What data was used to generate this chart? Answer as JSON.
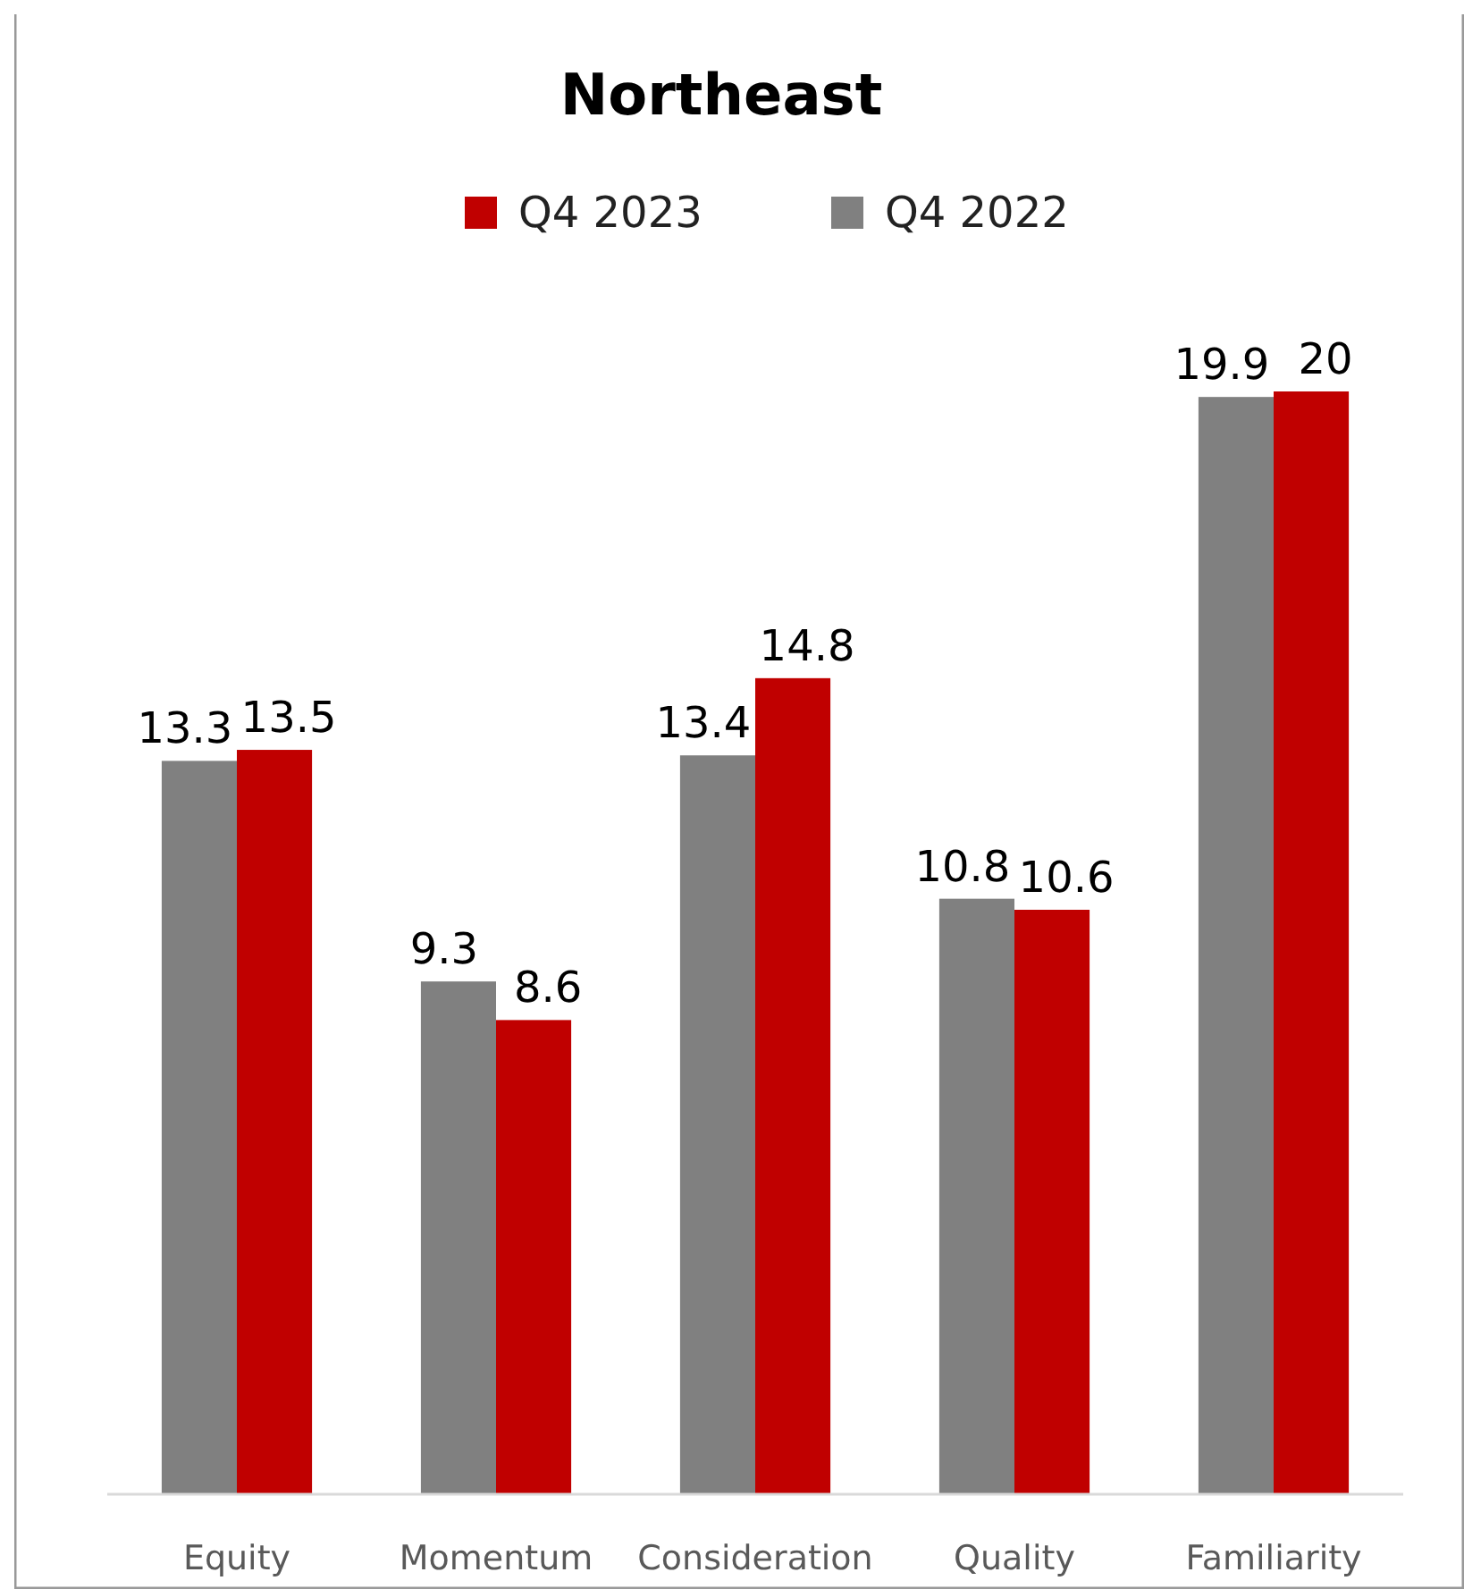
{
  "chart_data": {
    "type": "bar",
    "title": "Northeast",
    "categories": [
      "Equity",
      "Momentum",
      "Consideration",
      "Quality",
      "Familiarity"
    ],
    "series": [
      {
        "name": "Q4 2022",
        "color": "#808080",
        "values": [
          13.3,
          9.3,
          13.4,
          10.8,
          19.9
        ]
      },
      {
        "name": "Q4 2023",
        "color": "#c00000",
        "values": [
          13.5,
          8.6,
          14.8,
          10.6,
          20
        ]
      }
    ],
    "data_labels": true,
    "legend": "top",
    "grid": false
  }
}
